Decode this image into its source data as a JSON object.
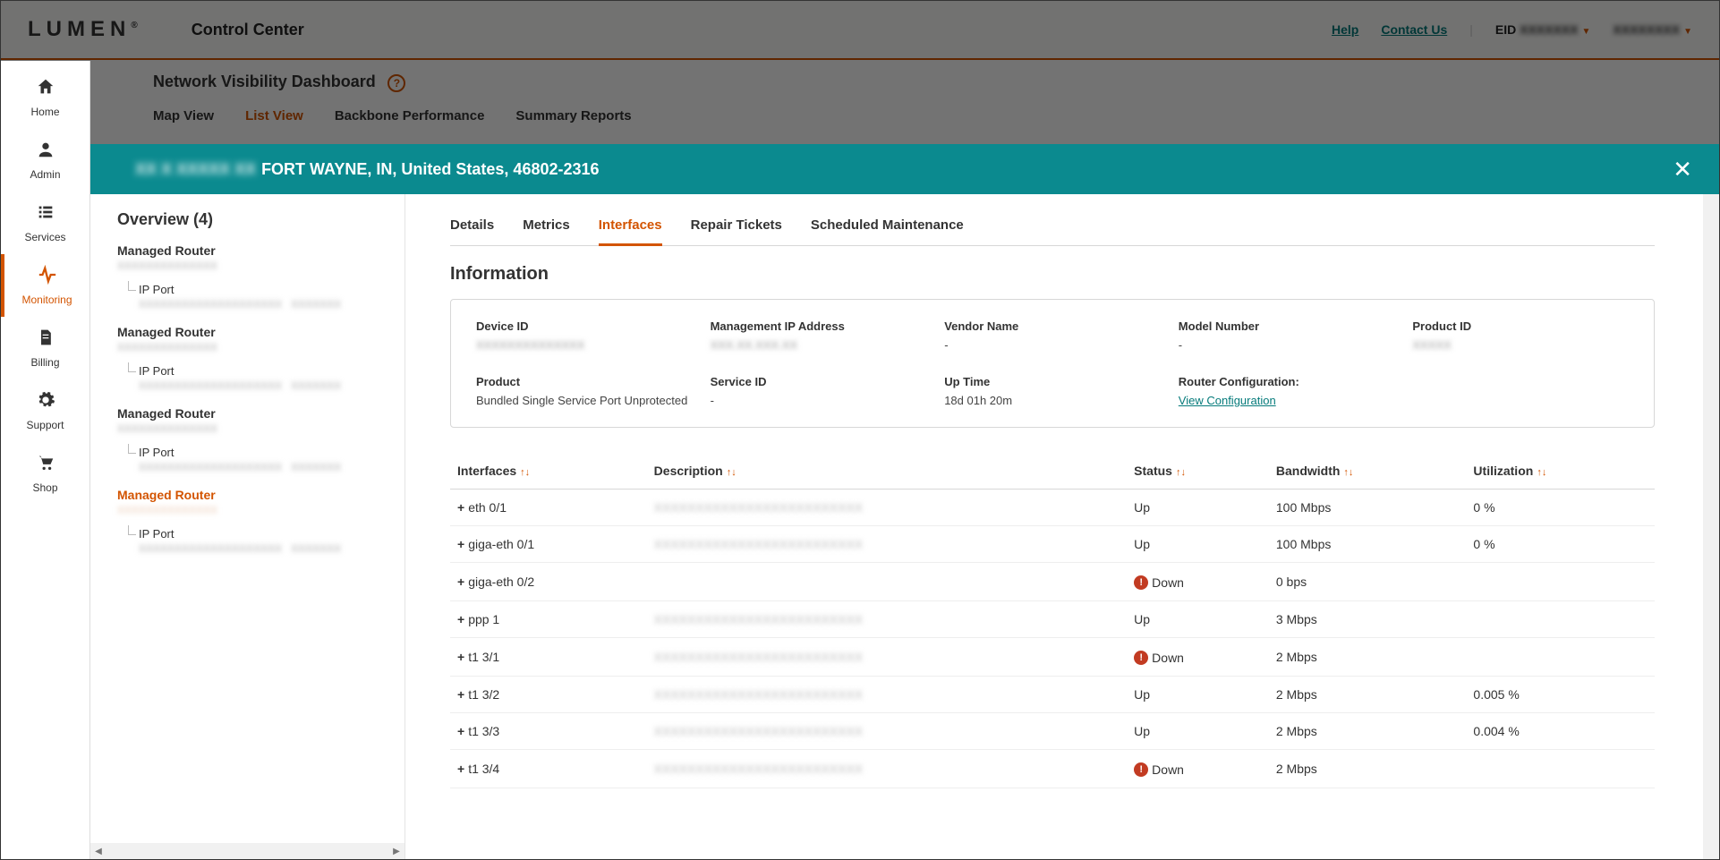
{
  "header": {
    "logo": "LUMEN",
    "control_center": "Control Center",
    "help": "Help",
    "contact": "Contact Us",
    "eid_label": "EID"
  },
  "subhead": {
    "title": "Network Visibility Dashboard",
    "tabs": [
      "Map View",
      "List View",
      "Backbone Performance",
      "Summary Reports"
    ],
    "active_tab": 1
  },
  "rail": {
    "items": [
      {
        "label": "Home"
      },
      {
        "label": "Admin"
      },
      {
        "label": "Services"
      },
      {
        "label": "Monitoring"
      },
      {
        "label": "Billing"
      },
      {
        "label": "Support"
      },
      {
        "label": "Shop"
      }
    ],
    "active": 3
  },
  "modal_header": {
    "location": "FORT WAYNE, IN, United States, 46802-2316"
  },
  "overview": {
    "title": "Overview (4)",
    "routers": [
      {
        "name": "Managed Router",
        "port": "IP Port",
        "active": false
      },
      {
        "name": "Managed Router",
        "port": "IP Port",
        "active": false
      },
      {
        "name": "Managed Router",
        "port": "IP Port",
        "active": false
      },
      {
        "name": "Managed Router",
        "port": "IP Port",
        "active": true
      }
    ]
  },
  "inner_tabs": {
    "items": [
      "Details",
      "Metrics",
      "Interfaces",
      "Repair Tickets",
      "Scheduled Maintenance"
    ],
    "active": 2
  },
  "info": {
    "title": "Information",
    "rows": [
      [
        {
          "label": "Device ID",
          "value": "XXXXXXXXXXXXXX",
          "blur": true
        },
        {
          "label": "Management IP Address",
          "value": "XXX.XX.XXX.XX",
          "blur": true
        },
        {
          "label": "Vendor Name",
          "value": "-",
          "blur": false
        },
        {
          "label": "Model Number",
          "value": "-",
          "blur": false
        },
        {
          "label": "Product ID",
          "value": "XXXXX",
          "blur": true
        }
      ],
      [
        {
          "label": "Product",
          "value": "Bundled Single Service Port Unprotected",
          "blur": false
        },
        {
          "label": "Service ID",
          "value": "-",
          "blur": false
        },
        {
          "label": "Up Time",
          "value": "18d 01h 20m",
          "blur": false
        },
        {
          "label": "Router Configuration:",
          "value": "View Configuration",
          "blur": false,
          "link": true
        },
        {
          "label": "",
          "value": "",
          "blur": false
        }
      ]
    ]
  },
  "iface_table": {
    "columns": [
      "Interfaces",
      "Description",
      "Status",
      "Bandwidth",
      "Utilization"
    ],
    "rows": [
      {
        "iface": "eth 0/1",
        "desc": "XXXXXXXXXXXXXXXXXXXXXXXXX",
        "status": "Up",
        "alert": false,
        "bw": "100 Mbps",
        "util": "0 %"
      },
      {
        "iface": "giga-eth 0/1",
        "desc": "XXXXXXXXXXXXXXXXXXXXXXXXX",
        "status": "Up",
        "alert": false,
        "bw": "100 Mbps",
        "util": "0 %"
      },
      {
        "iface": "giga-eth 0/2",
        "desc": "",
        "status": "Down",
        "alert": true,
        "bw": "0 bps",
        "util": ""
      },
      {
        "iface": "ppp 1",
        "desc": "XXXXXXXXXXXXXXXXXXXXXXXXX",
        "status": "Up",
        "alert": false,
        "bw": "3 Mbps",
        "util": ""
      },
      {
        "iface": "t1 3/1",
        "desc": "XXXXXXXXXXXXXXXXXXXXXXXXX",
        "status": "Down",
        "alert": true,
        "bw": "2 Mbps",
        "util": ""
      },
      {
        "iface": "t1 3/2",
        "desc": "XXXXXXXXXXXXXXXXXXXXXXXXX",
        "status": "Up",
        "alert": false,
        "bw": "2 Mbps",
        "util": "0.005 %"
      },
      {
        "iface": "t1 3/3",
        "desc": "XXXXXXXXXXXXXXXXXXXXXXXXX",
        "status": "Up",
        "alert": false,
        "bw": "2 Mbps",
        "util": "0.004 %"
      },
      {
        "iface": "t1 3/4",
        "desc": "XXXXXXXXXXXXXXXXXXXXXXXXX",
        "status": "Down",
        "alert": true,
        "bw": "2 Mbps",
        "util": ""
      }
    ]
  },
  "colors": {
    "accent": "#d35400",
    "teal": "#0b8a8f",
    "link": "#067b7b",
    "alert": "#c23b22"
  }
}
